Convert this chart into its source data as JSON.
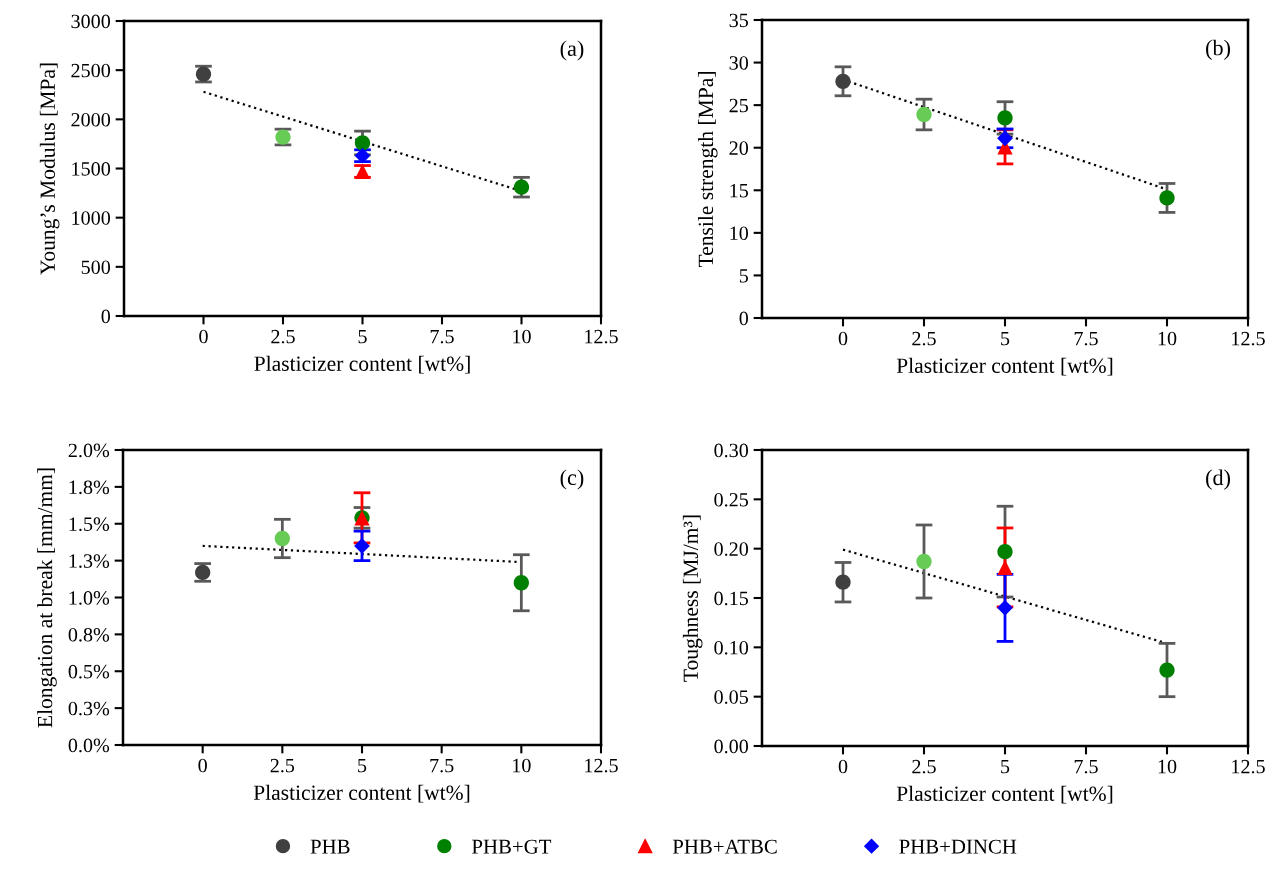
{
  "chart_data": [
    {
      "type": "scatter",
      "xlabel": "Plasticizer content [wt%]",
      "ylabel": "Young’s Modulus [MPa]",
      "annotations": [
        "(a)"
      ],
      "xlim": [
        -2.5,
        12.5
      ],
      "xticks": [
        0,
        2.5,
        5,
        7.5,
        10,
        12.5
      ],
      "ylim": [
        0,
        3000
      ],
      "yticks": [
        0,
        500,
        1000,
        1500,
        2000,
        2500,
        3000
      ],
      "grid": false,
      "legend": "bottom",
      "series": [
        {
          "name": "PHB",
          "color": "#404040",
          "marker": "circle",
          "x": [
            0
          ],
          "values": [
            2460
          ],
          "errors": [
            80
          ]
        },
        {
          "name": "PHB+GT",
          "color": "#008000",
          "colors": [
            "#66cc55",
            "#008000",
            "#008000"
          ],
          "marker": "circle",
          "x": [
            2.5,
            5,
            10
          ],
          "values": [
            1820,
            1760,
            1310
          ],
          "errors": [
            80,
            120,
            100
          ]
        },
        {
          "name": "PHB+ATBC",
          "color": "#ff0000",
          "marker": "triangle",
          "x": [
            5
          ],
          "values": [
            1470
          ],
          "errors": [
            60
          ]
        },
        {
          "name": "PHB+DINCH",
          "color": "#0000ff",
          "marker": "diamond",
          "x": [
            5
          ],
          "values": [
            1630
          ],
          "errors": [
            60
          ]
        },
        {
          "type": "line",
          "color": "#000000",
          "line_style": "dotted",
          "marker": "none",
          "x": [
            0,
            10
          ],
          "values": [
            2280,
            1270
          ]
        }
      ]
    },
    {
      "type": "scatter",
      "xlabel": "Plasticizer content [wt%]",
      "ylabel": "Tensile strength [MPa]",
      "annotations": [
        "(b)"
      ],
      "xlim": [
        -2.5,
        12.5
      ],
      "xticks": [
        0,
        2.5,
        5,
        7.5,
        10,
        12.5
      ],
      "ylim": [
        0,
        35
      ],
      "yticks": [
        0,
        5,
        10,
        15,
        20,
        25,
        30,
        35
      ],
      "grid": false,
      "series": [
        {
          "color": "#404040",
          "marker": "circle",
          "x": [
            0
          ],
          "values": [
            27.8
          ],
          "errors": [
            1.7
          ]
        },
        {
          "color": "#008000",
          "colors": [
            "#66cc55",
            "#008000",
            "#008000"
          ],
          "marker": "circle",
          "x": [
            2.5,
            5,
            10
          ],
          "values": [
            23.9,
            23.5,
            14.1
          ],
          "errors": [
            1.8,
            1.9,
            1.7
          ]
        },
        {
          "color": "#ff0000",
          "marker": "triangle",
          "x": [
            5
          ],
          "values": [
            20.1
          ],
          "errors": [
            2.0
          ]
        },
        {
          "color": "#0000ff",
          "marker": "diamond",
          "x": [
            5
          ],
          "values": [
            21.1
          ],
          "errors": [
            1.1
          ]
        },
        {
          "type": "line",
          "color": "#000000",
          "line_style": "dotted",
          "marker": "none",
          "x": [
            0,
            10
          ],
          "values": [
            28.0,
            15.1
          ]
        }
      ]
    },
    {
      "type": "scatter",
      "xlabel": "Plasticizer content [wt%]",
      "ylabel": "Elongation at break [mm/mm]",
      "annotations": [
        "(c)"
      ],
      "xlim": [
        -2.5,
        12.5
      ],
      "xticks": [
        0,
        2.5,
        5,
        7.5,
        10,
        12.5
      ],
      "ylim": [
        0,
        2.0
      ],
      "yticks": [
        {
          "value": 0,
          "label": "0.0%"
        },
        {
          "value": 0.25,
          "label": "0.3%"
        },
        {
          "value": 0.5,
          "label": "0.5%"
        },
        {
          "value": 0.75,
          "label": "0.8%"
        },
        {
          "value": 1.0,
          "label": "1.0%"
        },
        {
          "value": 1.25,
          "label": "1.3%"
        },
        {
          "value": 1.5,
          "label": "1.5%"
        },
        {
          "value": 1.75,
          "label": "1.8%"
        },
        {
          "value": 2.0,
          "label": "2.0%"
        }
      ],
      "grid": false,
      "series": [
        {
          "color": "#404040",
          "marker": "circle",
          "x": [
            0
          ],
          "values": [
            1.17
          ],
          "errors": [
            0.06
          ]
        },
        {
          "color": "#008000",
          "colors": [
            "#66cc55",
            "#008000",
            "#008000"
          ],
          "marker": "circle",
          "x": [
            2.5,
            5,
            10
          ],
          "values": [
            1.4,
            1.54,
            1.1
          ],
          "errors": [
            0.13,
            0.07,
            0.19
          ]
        },
        {
          "color": "#ff0000",
          "marker": "triangle",
          "x": [
            5
          ],
          "values": [
            1.54
          ],
          "errors": [
            0.17
          ]
        },
        {
          "color": "#0000ff",
          "marker": "diamond",
          "x": [
            5
          ],
          "values": [
            1.35
          ],
          "errors": [
            0.1
          ]
        },
        {
          "type": "line",
          "color": "#000000",
          "line_style": "dotted",
          "marker": "none",
          "x": [
            0,
            10
          ],
          "values": [
            1.35,
            1.24
          ]
        }
      ]
    },
    {
      "type": "scatter",
      "xlabel": "Plasticizer content [wt%]",
      "ylabel": "Toughness [MJ/m³]",
      "annotations": [
        "(d)"
      ],
      "xlim": [
        -2.5,
        12.5
      ],
      "xticks": [
        0,
        2.5,
        5,
        7.5,
        10,
        12.5
      ],
      "ylim": [
        0,
        0.3
      ],
      "yticks": [
        {
          "value": 0,
          "label": "0.00"
        },
        {
          "value": 0.05,
          "label": "0.05"
        },
        {
          "value": 0.1,
          "label": "0.10"
        },
        {
          "value": 0.15,
          "label": "0.15"
        },
        {
          "value": 0.2,
          "label": "0.20"
        },
        {
          "value": 0.25,
          "label": "0.25"
        },
        {
          "value": 0.3,
          "label": "0.30"
        }
      ],
      "grid": false,
      "series": [
        {
          "color": "#404040",
          "marker": "circle",
          "x": [
            0
          ],
          "values": [
            0.166
          ],
          "errors": [
            0.02
          ]
        },
        {
          "color": "#008000",
          "colors": [
            "#66cc55",
            "#008000",
            "#008000"
          ],
          "marker": "circle",
          "x": [
            2.5,
            5,
            10
          ],
          "values": [
            0.187,
            0.197,
            0.077
          ],
          "errors": [
            0.037,
            0.046,
            0.027
          ]
        },
        {
          "color": "#ff0000",
          "marker": "triangle",
          "x": [
            5
          ],
          "values": [
            0.181
          ],
          "errors": [
            0.04
          ]
        },
        {
          "color": "#0000ff",
          "marker": "diamond",
          "x": [
            5
          ],
          "values": [
            0.14
          ],
          "errors": [
            0.034
          ]
        },
        {
          "type": "line",
          "color": "#000000",
          "line_style": "dotted",
          "marker": "none",
          "x": [
            0,
            10
          ],
          "values": [
            0.199,
            0.104
          ]
        }
      ]
    }
  ]
}
